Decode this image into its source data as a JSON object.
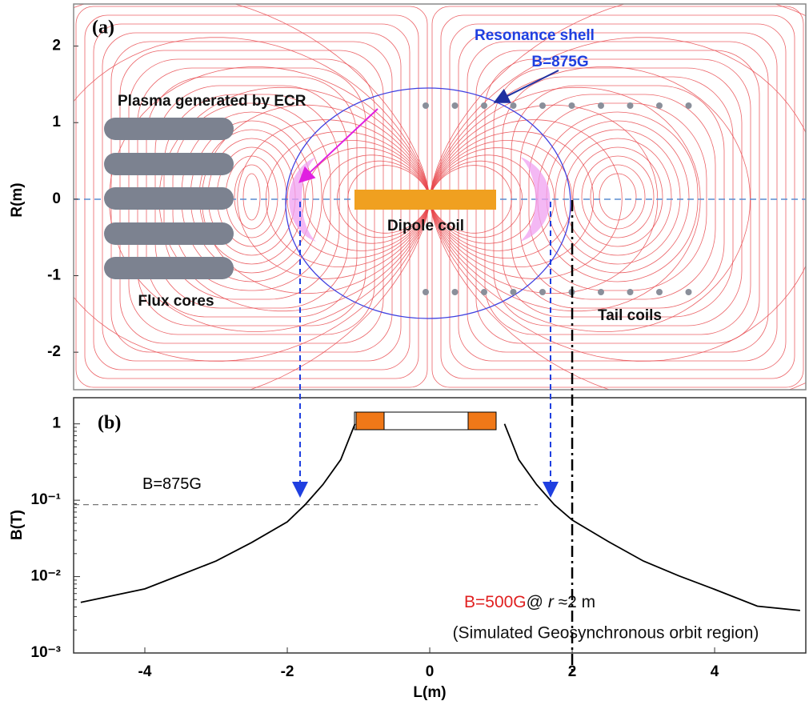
{
  "chart_data": [
    {
      "type": "field",
      "panel_label": "(a)",
      "ylabel": "R(m)",
      "xlim": [
        -5,
        5.28
      ],
      "ylim": [
        -2.49,
        2.55
      ],
      "yticks": [
        -2,
        -1,
        0,
        1,
        2
      ],
      "annotations": {
        "resonance": "Resonance shell",
        "resonance_b": "B=875G",
        "plasma": "Plasma generated by ECR",
        "flux_cores": "Flux cores",
        "dipole": "Dipole coil",
        "tail": "Tail coils"
      }
    },
    {
      "type": "line",
      "panel_label": "(b)",
      "xlabel": "L(m)",
      "ylabel": "B(T)",
      "log_y": true,
      "xlim": [
        -5,
        5.28
      ],
      "xticks": [
        -4,
        -2,
        0,
        2,
        4
      ],
      "ylim": [
        0.001,
        2.2
      ],
      "yticks": [
        {
          "value": 0.001,
          "label": "10⁻³"
        },
        {
          "value": 0.01,
          "label": "10⁻²"
        },
        {
          "value": 0.1,
          "label": "10⁻¹"
        },
        1
      ],
      "x": [
        -4.9,
        -4.5,
        -4,
        -3.5,
        -3,
        -2.5,
        -2,
        -1.75,
        -1.5,
        -1.25,
        -1.05,
        0,
        1.05,
        1.25,
        1.5,
        1.75,
        2,
        2.5,
        3,
        3.5,
        4,
        4.6,
        5.2
      ],
      "series": [
        {
          "color": "#000000",
          "values": [
            0.0046,
            0.0055,
            0.0069,
            0.0105,
            0.016,
            0.028,
            0.052,
            0.0875,
            0.16,
            0.34,
            1.0,
            null,
            1.0,
            0.34,
            0.16,
            0.0875,
            0.055,
            0.029,
            0.016,
            0.0102,
            0.0068,
            0.0041,
            0.0036
          ]
        }
      ],
      "ref_line": {
        "value": 0.0875,
        "label": "B=875G"
      },
      "vline": 2,
      "annotations": {
        "b500": "B=500G",
        "at": "@ ",
        "r": "r",
        "approx": " ≈2 m",
        "region": "(Simulated Geosynchronous orbit region)"
      }
    }
  ]
}
